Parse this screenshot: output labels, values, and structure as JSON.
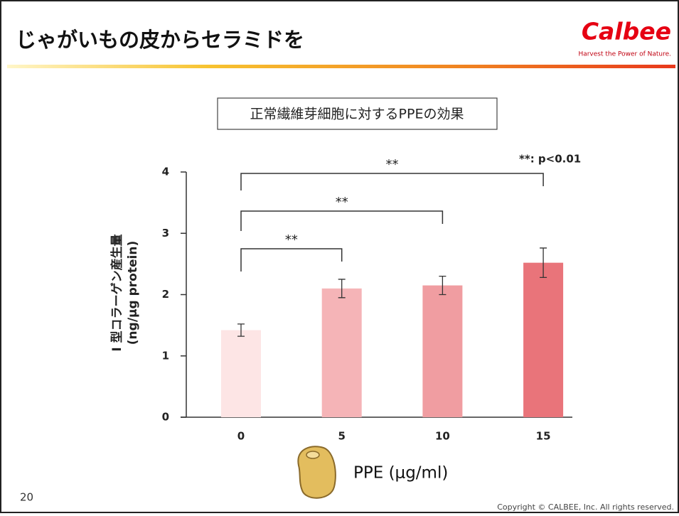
{
  "slide_title": "じゃがいもの皮からセラミドを",
  "logo": {
    "name": "Calbee",
    "tagline": "Harvest the Power of Nature."
  },
  "page_number": "20",
  "copyright": "Copyright © CALBEE, Inc. All rights reserved.",
  "chart_data": {
    "type": "bar",
    "title": "正常繊維芽細胞に対するPPEの効果",
    "y_label": [
      "I 型コラーゲン産生量",
      "(ng/μg protein)"
    ],
    "x_label": "PPE (μg/ml)",
    "annotation": "**: p<0.01",
    "categories": [
      "0",
      "5",
      "10",
      "15"
    ],
    "values": [
      1.42,
      2.1,
      2.15,
      2.52
    ],
    "errors": [
      0.1,
      0.15,
      0.15,
      0.24
    ],
    "colors": [
      "#fde5e5",
      "#f5b4b7",
      "#f09da1",
      "#e9747a"
    ],
    "significance": [
      {
        "label": "**"
      },
      {
        "label": "**"
      },
      {
        "label": "**"
      }
    ],
    "ylim": [
      0,
      4
    ],
    "yticks": [
      0,
      1,
      2,
      3,
      4
    ]
  }
}
